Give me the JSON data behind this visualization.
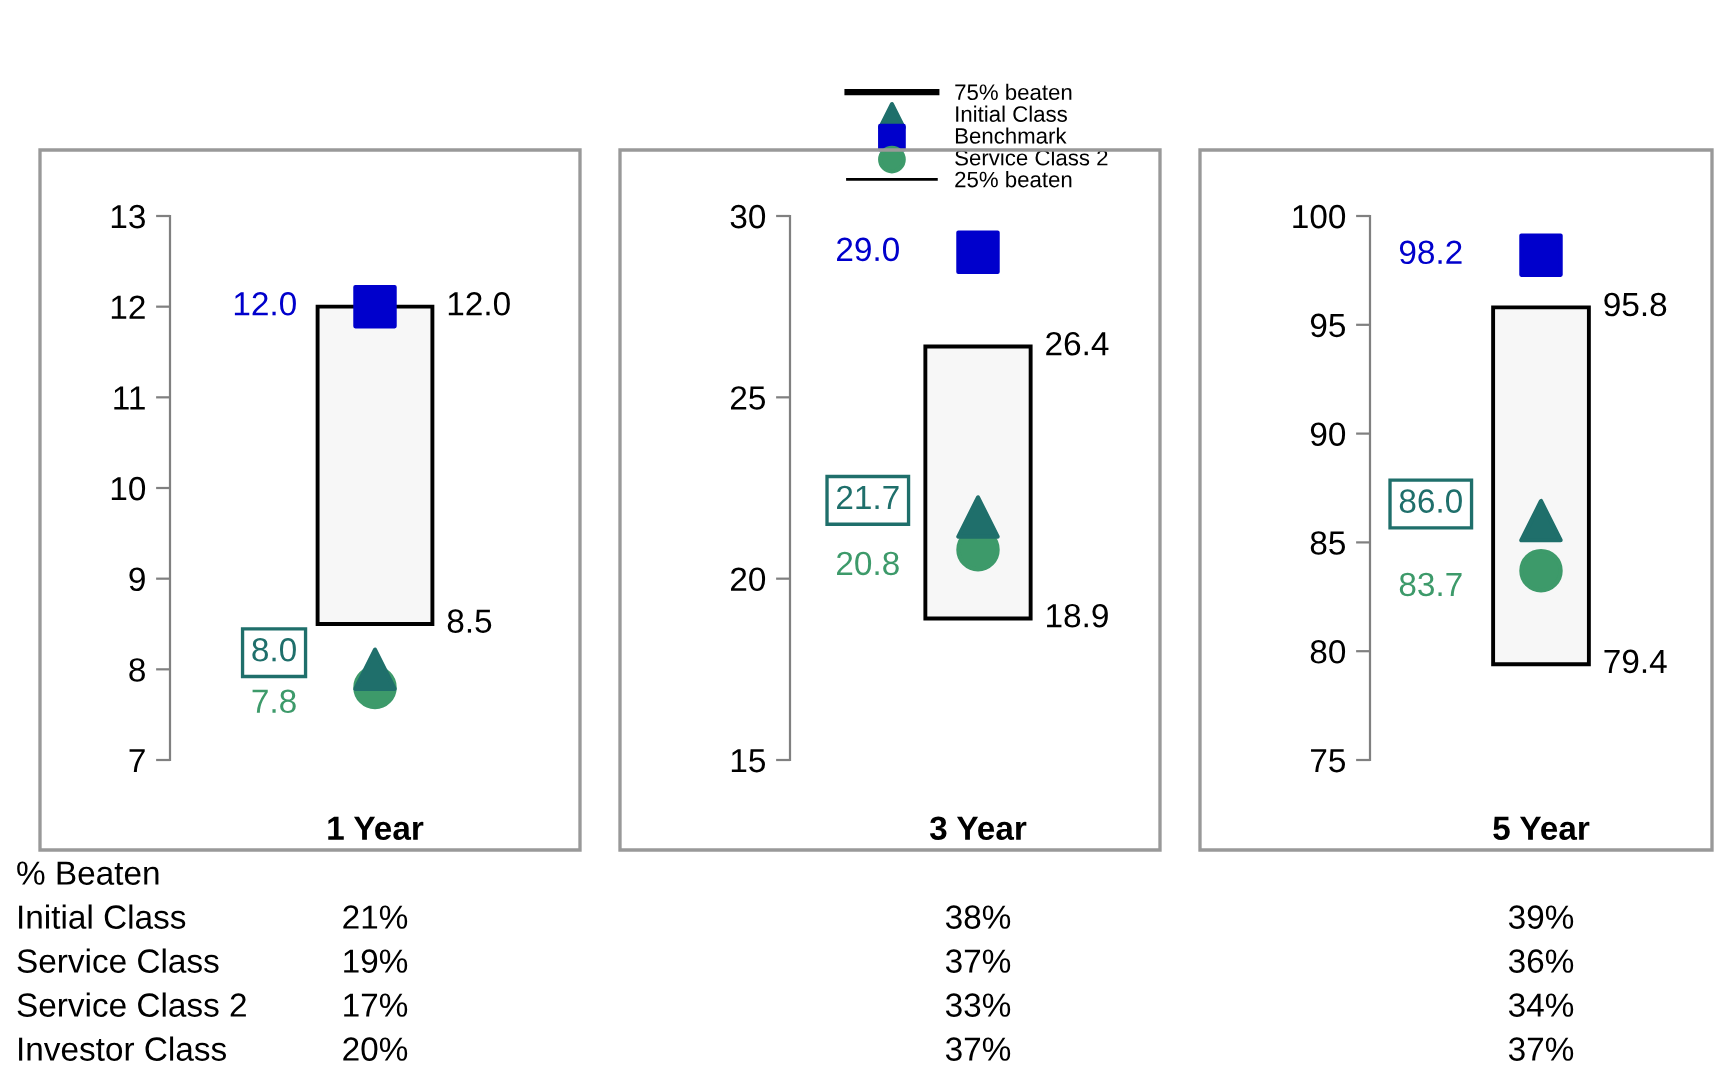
{
  "chart_data": [
    {
      "type": "bar",
      "categories": [
        "1 Year"
      ],
      "ylim": [
        7,
        13
      ],
      "yticks": [
        7,
        8,
        9,
        10,
        11,
        12,
        13
      ],
      "grid": false,
      "series": [
        {
          "base": [
            8.5
          ],
          "values": [
            3.5
          ],
          "color": "#f7f7f7"
        },
        {
          "type": "scatter",
          "marker": "triangle",
          "values": [
            8.0
          ],
          "color": "#1f6f6b",
          "value_labels": [
            "8.0"
          ]
        },
        {
          "type": "scatter",
          "marker": "square",
          "values": [
            12.0
          ],
          "color": "#0000cc",
          "value_labels": [
            "12.0"
          ]
        },
        {
          "type": "scatter",
          "marker": "circle",
          "values": [
            7.8
          ],
          "color": "#3d9a6a",
          "value_labels": [
            "7.8"
          ]
        }
      ],
      "annotations": [
        {
          "text": "12.0",
          "x": "1 Year",
          "y": 12.0
        },
        {
          "text": "8.5",
          "x": "1 Year",
          "y": 8.5
        },
        "% Beaten",
        "Initial Class",
        "Service Class",
        "Service Class 2",
        "Investor Class",
        "21%",
        "19%",
        "17%",
        "20%"
      ]
    },
    {
      "type": "bar",
      "categories": [
        "3 Year"
      ],
      "ylim": [
        15,
        30
      ],
      "yticks": [
        15,
        20,
        25,
        30
      ],
      "grid": false,
      "legend": "top",
      "series": [
        {
          "base": [
            18.9
          ],
          "values": [
            7.5
          ],
          "color": "#f7f7f7"
        },
        {
          "name": "Initial Class",
          "type": "scatter",
          "marker": "triangle",
          "values": [
            21.7
          ],
          "color": "#1f6f6b",
          "value_labels": [
            "21.7"
          ]
        },
        {
          "name": "Benchmark",
          "type": "scatter",
          "marker": "square",
          "values": [
            29.0
          ],
          "color": "#0000cc",
          "value_labels": [
            "29.0"
          ]
        },
        {
          "name": "Service Class 2",
          "type": "scatter",
          "marker": "circle",
          "values": [
            20.8
          ],
          "color": "#3d9a6a",
          "value_labels": [
            "20.8"
          ]
        }
      ],
      "annotations": [
        {
          "text": "26.4",
          "x": "3 Year",
          "y": 26.4
        },
        {
          "text": "18.9",
          "x": "3 Year",
          "y": 18.9
        },
        "75% beaten",
        "25% beaten",
        "38%",
        "37%",
        "33%",
        "37%"
      ]
    },
    {
      "type": "bar",
      "categories": [
        "5 Year"
      ],
      "ylim": [
        75,
        100
      ],
      "yticks": [
        75,
        80,
        85,
        90,
        95,
        100
      ],
      "grid": false,
      "series": [
        {
          "base": [
            79.4
          ],
          "values": [
            16.4
          ],
          "color": "#f7f7f7"
        },
        {
          "type": "scatter",
          "marker": "triangle",
          "values": [
            86.0
          ],
          "color": "#1f6f6b",
          "value_labels": [
            "86.0"
          ]
        },
        {
          "type": "scatter",
          "marker": "square",
          "values": [
            98.2
          ],
          "color": "#0000cc",
          "value_labels": [
            "98.2"
          ]
        },
        {
          "type": "scatter",
          "marker": "circle",
          "values": [
            83.7
          ],
          "color": "#3d9a6a",
          "value_labels": [
            "83.7"
          ]
        }
      ],
      "annotations": [
        {
          "text": "95.8",
          "x": "5 Year",
          "y": 95.8
        },
        {
          "text": "79.4",
          "x": "5 Year",
          "y": 79.4
        },
        "39%",
        "36%",
        "34%",
        "37%"
      ]
    }
  ]
}
